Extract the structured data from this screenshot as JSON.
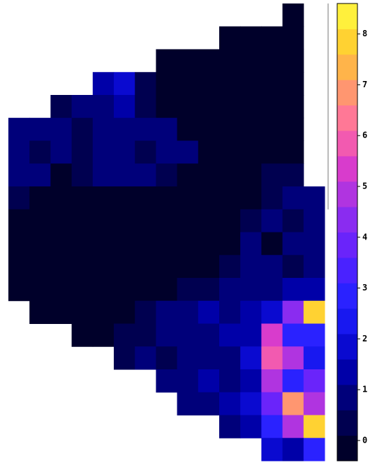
{
  "chart_data": {
    "type": "heatmap",
    "z": [
      [
        null,
        null,
        null,
        null,
        null,
        null,
        null,
        null,
        null,
        null,
        null,
        null,
        null,
        0,
        null
      ],
      [
        null,
        null,
        null,
        null,
        null,
        null,
        null,
        null,
        null,
        null,
        0,
        0,
        0,
        0,
        null
      ],
      [
        null,
        null,
        null,
        null,
        null,
        null,
        null,
        0,
        0,
        0,
        0,
        0,
        0,
        0,
        null
      ],
      [
        null,
        null,
        null,
        null,
        1.5,
        2,
        0.5,
        0,
        0,
        0,
        0,
        0,
        0,
        0,
        null
      ],
      [
        null,
        null,
        0.5,
        0.8,
        1,
        1.2,
        0.5,
        0,
        0,
        0,
        0,
        0,
        0,
        0,
        null
      ],
      [
        1,
        0.8,
        0.8,
        0.5,
        0.8,
        1,
        0.8,
        0.8,
        0,
        0,
        0,
        0,
        0,
        0,
        null
      ],
      [
        0.8,
        0.5,
        0.8,
        0.5,
        1,
        0.8,
        0.5,
        1,
        0.8,
        0,
        0,
        0,
        0,
        0,
        null
      ],
      [
        0.8,
        0.8,
        0,
        0.5,
        0.8,
        0.8,
        0.8,
        0.5,
        0,
        0,
        0,
        0,
        0.5,
        0.5,
        null
      ],
      [
        0.5,
        0,
        0,
        0,
        0,
        0,
        0,
        0,
        0,
        0,
        0,
        0,
        0.5,
        0.8,
        0.8
      ],
      [
        0,
        0,
        0,
        0,
        0,
        0,
        0,
        0,
        0,
        0,
        0,
        0.5,
        0.8,
        0.5,
        1
      ],
      [
        0,
        0,
        0,
        0,
        0,
        0,
        0,
        0,
        0,
        0,
        0,
        0.8,
        0,
        0.8,
        0.8
      ],
      [
        0,
        0,
        0,
        0,
        0,
        0,
        0,
        0,
        0,
        0,
        0.5,
        0.8,
        0.8,
        0.5,
        0.8
      ],
      [
        0,
        0,
        0,
        0,
        0,
        0,
        0,
        0,
        0.5,
        0.5,
        0.8,
        1,
        1,
        1.5,
        1.5
      ],
      [
        null,
        0,
        0,
        0,
        0,
        0,
        0.5,
        0.8,
        1,
        1.2,
        1,
        1.5,
        2,
        4.5,
        8
      ],
      [
        null,
        null,
        null,
        0,
        0,
        0.5,
        0.5,
        1,
        0.8,
        1,
        1.5,
        1.2,
        5.5,
        3,
        3
      ],
      [
        null,
        null,
        null,
        null,
        null,
        0.5,
        0.8,
        0.5,
        1,
        1,
        0.8,
        2,
        6,
        5,
        2.5
      ],
      [
        null,
        null,
        null,
        null,
        null,
        null,
        null,
        0.8,
        1,
        1.2,
        0.8,
        1.5,
        5,
        3,
        4
      ],
      [
        null,
        null,
        null,
        null,
        null,
        null,
        null,
        null,
        0.8,
        1,
        1.5,
        2,
        4,
        7,
        5
      ],
      [
        null,
        null,
        null,
        null,
        null,
        null,
        null,
        null,
        null,
        null,
        1,
        1.5,
        3,
        5,
        8
      ],
      [
        null,
        null,
        null,
        null,
        null,
        null,
        null,
        null,
        null,
        null,
        null,
        null,
        2,
        1.5,
        3
      ]
    ],
    "zlim": [
      -0.4,
      8.6
    ],
    "zticks": [
      0,
      1,
      2,
      3,
      4,
      5,
      6,
      7,
      8
    ],
    "colors": [
      "#00002a",
      "#000050",
      "#00007a",
      "#0000a8",
      "#0a0ad0",
      "#1818f0",
      "#2a22ff",
      "#4a22ff",
      "#6a24fa",
      "#8a2cf0",
      "#b034e0",
      "#d83ccc",
      "#f25ab0",
      "#ff7896",
      "#ff9670",
      "#ffb44a",
      "#ffd232",
      "#fff03c"
    ]
  }
}
